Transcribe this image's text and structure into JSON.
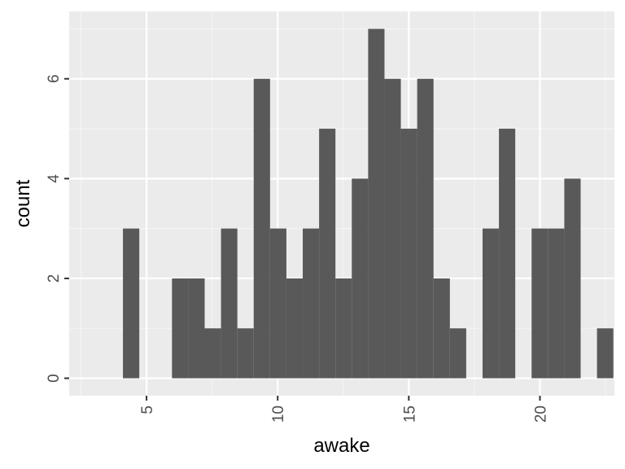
{
  "chart_data": {
    "type": "bar",
    "subtype": "histogram",
    "xlabel": "awake",
    "ylabel": "count",
    "xlim": [
      2.05,
      22.84
    ],
    "ylim": [
      -0.35,
      7.35
    ],
    "x_ticks": [
      5,
      10,
      15,
      20
    ],
    "x_tick_labels": [
      "5",
      "10",
      "15",
      "20"
    ],
    "y_ticks": [
      0,
      2,
      4,
      6
    ],
    "y_tick_labels": [
      "0",
      "2",
      "4",
      "6"
    ],
    "x_tick_label_rotation": -90,
    "y_tick_label_rotation": -90,
    "grid": true,
    "bin_width": 0.6233,
    "bins": [
      {
        "x_min": 4.1,
        "x_max": 4.7233,
        "count": 3
      },
      {
        "x_min": 4.7233,
        "x_max": 5.3466,
        "count": 0
      },
      {
        "x_min": 5.3466,
        "x_max": 5.9699,
        "count": 0
      },
      {
        "x_min": 5.9699,
        "x_max": 6.5932,
        "count": 2
      },
      {
        "x_min": 6.5932,
        "x_max": 7.2165,
        "count": 2
      },
      {
        "x_min": 7.2165,
        "x_max": 7.8398,
        "count": 1
      },
      {
        "x_min": 7.8398,
        "x_max": 8.4631,
        "count": 3
      },
      {
        "x_min": 8.4631,
        "x_max": 9.0864,
        "count": 1
      },
      {
        "x_min": 9.0864,
        "x_max": 9.7097,
        "count": 6
      },
      {
        "x_min": 9.7097,
        "x_max": 10.333,
        "count": 3
      },
      {
        "x_min": 10.333,
        "x_max": 10.9563,
        "count": 2
      },
      {
        "x_min": 10.9563,
        "x_max": 11.5796,
        "count": 3
      },
      {
        "x_min": 11.5796,
        "x_max": 12.2029,
        "count": 5
      },
      {
        "x_min": 12.2029,
        "x_max": 12.8262,
        "count": 2
      },
      {
        "x_min": 12.8262,
        "x_max": 13.4495,
        "count": 4
      },
      {
        "x_min": 13.4495,
        "x_max": 14.0728,
        "count": 7
      },
      {
        "x_min": 14.0728,
        "x_max": 14.6961,
        "count": 6
      },
      {
        "x_min": 14.6961,
        "x_max": 15.3194,
        "count": 5
      },
      {
        "x_min": 15.3194,
        "x_max": 15.9427,
        "count": 6
      },
      {
        "x_min": 15.9427,
        "x_max": 16.566,
        "count": 2
      },
      {
        "x_min": 16.566,
        "x_max": 17.1893,
        "count": 1
      },
      {
        "x_min": 17.1893,
        "x_max": 17.8126,
        "count": 0
      },
      {
        "x_min": 17.8126,
        "x_max": 18.4359,
        "count": 3
      },
      {
        "x_min": 18.4359,
        "x_max": 19.0592,
        "count": 5
      },
      {
        "x_min": 19.0592,
        "x_max": 19.6825,
        "count": 0
      },
      {
        "x_min": 19.6825,
        "x_max": 20.3058,
        "count": 3
      },
      {
        "x_min": 20.3058,
        "x_max": 20.9291,
        "count": 3
      },
      {
        "x_min": 20.9291,
        "x_max": 21.5524,
        "count": 4
      },
      {
        "x_min": 21.5524,
        "x_max": 22.1757,
        "count": 0
      },
      {
        "x_min": 22.1757,
        "x_max": 22.799,
        "count": 1
      }
    ],
    "colors": {
      "panel_background": "#ebebeb",
      "grid_major": "#ffffff",
      "grid_minor": "#f5f5f5",
      "bar_fill": "#595959",
      "tick_mark": "#333333",
      "tick_label": "#4d4d4d",
      "axis_title": "#000000"
    }
  }
}
